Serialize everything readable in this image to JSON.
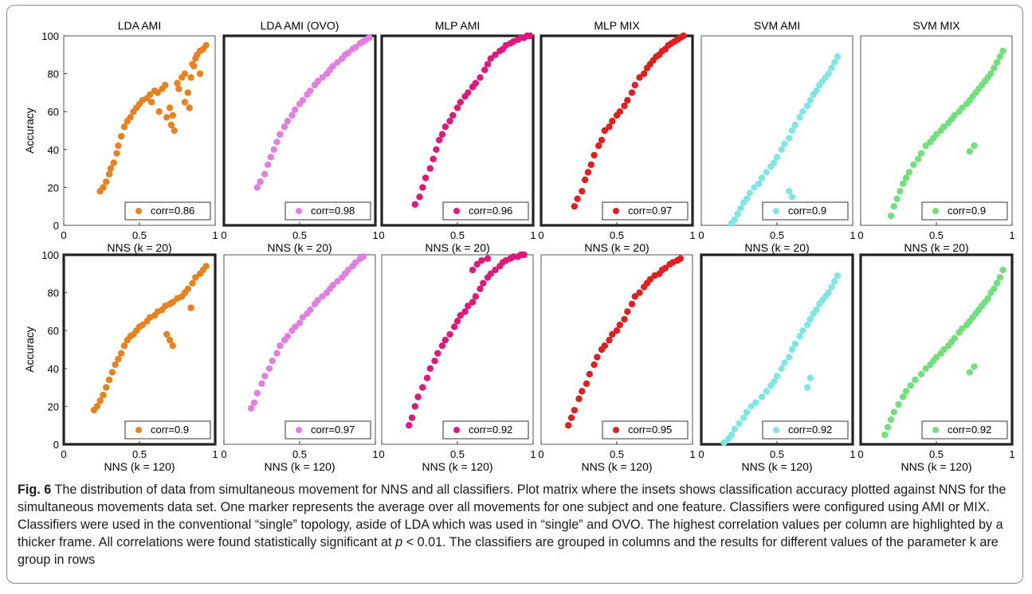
{
  "figure": {
    "ylabel": "Accuracy",
    "xticks": [
      "0",
      "0.5",
      "1"
    ],
    "yticks": [
      "0",
      "20",
      "40",
      "60",
      "80",
      "100"
    ],
    "xlim": [
      0,
      1
    ],
    "ylim": [
      0,
      100
    ]
  },
  "chart_data": [
    {
      "type": "scatter",
      "row": 0,
      "col": 0,
      "title": "LDA AMI",
      "xlabel": "NNS (k = 20)",
      "legend": "corr=0.86",
      "highlight": false,
      "color": "#e8821e",
      "x": [
        0.24,
        0.26,
        0.28,
        0.3,
        0.31,
        0.33,
        0.35,
        0.36,
        0.38,
        0.4,
        0.42,
        0.44,
        0.46,
        0.48,
        0.5,
        0.52,
        0.55,
        0.57,
        0.6,
        0.62,
        0.65,
        0.67,
        0.7,
        0.72,
        0.75,
        0.76,
        0.78,
        0.8,
        0.82,
        0.84,
        0.85,
        0.87,
        0.88,
        0.9,
        0.92,
        0.94,
        0.71,
        0.73,
        0.8,
        0.83,
        0.68,
        0.63,
        0.58,
        0.86,
        0.9
      ],
      "y": [
        18,
        20,
        23,
        27,
        30,
        33,
        38,
        42,
        47,
        52,
        55,
        57,
        60,
        62,
        64,
        66,
        67,
        69,
        71,
        70,
        72,
        74,
        62,
        58,
        75,
        72,
        78,
        80,
        70,
        78,
        85,
        88,
        90,
        92,
        93,
        95,
        53,
        50,
        65,
        62,
        57,
        60,
        65,
        84,
        80
      ]
    },
    {
      "type": "scatter",
      "row": 0,
      "col": 1,
      "title": "LDA AMI (OVO)",
      "xlabel": "NNS (k = 20)",
      "legend": "corr=0.98",
      "highlight": true,
      "color": "#e27ee2",
      "x": [
        0.22,
        0.24,
        0.27,
        0.29,
        0.31,
        0.33,
        0.35,
        0.37,
        0.4,
        0.42,
        0.45,
        0.47,
        0.5,
        0.52,
        0.55,
        0.57,
        0.6,
        0.62,
        0.65,
        0.68,
        0.7,
        0.72,
        0.75,
        0.78,
        0.8,
        0.82,
        0.85,
        0.87,
        0.9,
        0.92,
        0.94,
        0.96
      ],
      "y": [
        20,
        23,
        27,
        32,
        36,
        40,
        44,
        48,
        52,
        55,
        58,
        61,
        64,
        66,
        69,
        71,
        74,
        76,
        78,
        80,
        82,
        84,
        86,
        88,
        90,
        91,
        93,
        94,
        96,
        97,
        98,
        99
      ]
    },
    {
      "type": "scatter",
      "row": 0,
      "col": 2,
      "title": "MLP AMI",
      "xlabel": "NNS (k = 20)",
      "legend": "corr=0.96",
      "highlight": true,
      "color": "#e0187c",
      "x": [
        0.22,
        0.25,
        0.27,
        0.29,
        0.32,
        0.34,
        0.36,
        0.38,
        0.4,
        0.42,
        0.45,
        0.47,
        0.5,
        0.52,
        0.55,
        0.57,
        0.6,
        0.62,
        0.65,
        0.68,
        0.7,
        0.72,
        0.75,
        0.78,
        0.8,
        0.82,
        0.85,
        0.87,
        0.9,
        0.92,
        0.94,
        0.96,
        0.98
      ],
      "y": [
        11,
        15,
        20,
        25,
        30,
        35,
        40,
        45,
        48,
        52,
        55,
        58,
        62,
        65,
        68,
        70,
        73,
        75,
        78,
        82,
        85,
        88,
        90,
        92,
        93,
        95,
        96,
        97,
        98,
        99,
        99,
        100,
        100
      ]
    },
    {
      "type": "scatter",
      "row": 0,
      "col": 3,
      "title": "MLP MIX",
      "xlabel": "NNS (k = 20)",
      "legend": "corr=0.97",
      "highlight": true,
      "color": "#e01f1f",
      "x": [
        0.22,
        0.24,
        0.27,
        0.29,
        0.31,
        0.33,
        0.35,
        0.38,
        0.4,
        0.42,
        0.45,
        0.47,
        0.5,
        0.52,
        0.55,
        0.57,
        0.6,
        0.62,
        0.65,
        0.68,
        0.7,
        0.72,
        0.74,
        0.76,
        0.78,
        0.8,
        0.82,
        0.84,
        0.86,
        0.88,
        0.9,
        0.92,
        0.94
      ],
      "y": [
        10,
        14,
        18,
        24,
        28,
        32,
        37,
        42,
        45,
        50,
        52,
        55,
        58,
        60,
        63,
        66,
        70,
        74,
        78,
        80,
        83,
        85,
        87,
        89,
        90,
        92,
        93,
        95,
        96,
        97,
        98,
        99,
        100
      ]
    },
    {
      "type": "scatter",
      "row": 0,
      "col": 4,
      "title": "SVM AMI",
      "xlabel": "NNS (k = 20)",
      "legend": "corr=0.9",
      "highlight": false,
      "color": "#7fe7e3",
      "x": [
        0.2,
        0.22,
        0.24,
        0.26,
        0.28,
        0.3,
        0.32,
        0.35,
        0.38,
        0.4,
        0.43,
        0.46,
        0.48,
        0.5,
        0.53,
        0.55,
        0.58,
        0.6,
        0.62,
        0.65,
        0.67,
        0.7,
        0.72,
        0.74,
        0.76,
        0.78,
        0.8,
        0.82,
        0.84,
        0.86,
        0.88,
        0.9,
        0.58,
        0.6
      ],
      "y": [
        1,
        3,
        6,
        9,
        12,
        14,
        17,
        20,
        22,
        25,
        28,
        31,
        33,
        36,
        40,
        43,
        46,
        50,
        53,
        57,
        60,
        63,
        66,
        69,
        71,
        74,
        76,
        78,
        80,
        83,
        86,
        89,
        18,
        15
      ]
    },
    {
      "type": "scatter",
      "row": 0,
      "col": 5,
      "title": "SVM MIX",
      "xlabel": "NNS (k = 20)",
      "legend": "corr=0.9",
      "highlight": false,
      "color": "#6fe07a",
      "x": [
        0.2,
        0.22,
        0.24,
        0.26,
        0.28,
        0.3,
        0.32,
        0.35,
        0.38,
        0.4,
        0.43,
        0.46,
        0.48,
        0.5,
        0.53,
        0.55,
        0.58,
        0.6,
        0.62,
        0.65,
        0.67,
        0.7,
        0.72,
        0.74,
        0.76,
        0.78,
        0.8,
        0.82,
        0.84,
        0.86,
        0.88,
        0.9,
        0.92,
        0.94,
        0.72,
        0.75
      ],
      "y": [
        5,
        10,
        14,
        18,
        22,
        25,
        28,
        32,
        35,
        38,
        42,
        44,
        46,
        48,
        50,
        52,
        54,
        56,
        58,
        60,
        62,
        64,
        66,
        68,
        70,
        72,
        74,
        76,
        78,
        80,
        83,
        86,
        89,
        92,
        39,
        42
      ]
    },
    {
      "type": "scatter",
      "row": 1,
      "col": 0,
      "title": "",
      "xlabel": "NNS (k = 120)",
      "legend": "corr=0.9",
      "highlight": true,
      "color": "#e8821e",
      "x": [
        0.2,
        0.22,
        0.24,
        0.26,
        0.28,
        0.3,
        0.32,
        0.34,
        0.36,
        0.38,
        0.4,
        0.42,
        0.44,
        0.46,
        0.48,
        0.5,
        0.52,
        0.55,
        0.57,
        0.6,
        0.62,
        0.65,
        0.67,
        0.7,
        0.72,
        0.75,
        0.78,
        0.8,
        0.82,
        0.85,
        0.87,
        0.9,
        0.92,
        0.94,
        0.7,
        0.72,
        0.68,
        0.84
      ],
      "y": [
        18,
        20,
        23,
        26,
        30,
        34,
        38,
        42,
        45,
        48,
        52,
        55,
        57,
        58,
        60,
        62,
        63,
        65,
        67,
        68,
        70,
        71,
        73,
        74,
        75,
        77,
        78,
        80,
        82,
        85,
        88,
        90,
        92,
        94,
        55,
        52,
        58,
        72
      ]
    },
    {
      "type": "scatter",
      "row": 1,
      "col": 1,
      "title": "",
      "xlabel": "NNS (k = 120)",
      "legend": "corr=0.97",
      "highlight": false,
      "color": "#e27ee2",
      "x": [
        0.18,
        0.2,
        0.22,
        0.25,
        0.27,
        0.3,
        0.32,
        0.35,
        0.37,
        0.4,
        0.42,
        0.45,
        0.47,
        0.5,
        0.52,
        0.55,
        0.57,
        0.6,
        0.62,
        0.65,
        0.68,
        0.7,
        0.72,
        0.75,
        0.78,
        0.8,
        0.82,
        0.85,
        0.87,
        0.9,
        0.92
      ],
      "y": [
        19,
        22,
        27,
        32,
        36,
        40,
        44,
        48,
        52,
        55,
        57,
        60,
        62,
        64,
        67,
        69,
        71,
        74,
        76,
        78,
        80,
        82,
        84,
        86,
        88,
        90,
        92,
        94,
        96,
        98,
        99
      ]
    },
    {
      "type": "scatter",
      "row": 1,
      "col": 2,
      "title": "",
      "xlabel": "NNS (k = 120)",
      "legend": "corr=0.92",
      "highlight": false,
      "color": "#e0187c",
      "x": [
        0.18,
        0.2,
        0.22,
        0.24,
        0.27,
        0.3,
        0.32,
        0.35,
        0.37,
        0.4,
        0.42,
        0.45,
        0.48,
        0.5,
        0.52,
        0.55,
        0.57,
        0.6,
        0.62,
        0.65,
        0.67,
        0.7,
        0.72,
        0.75,
        0.78,
        0.8,
        0.82,
        0.85,
        0.87,
        0.9,
        0.92,
        0.94,
        0.6,
        0.63,
        0.66,
        0.7
      ],
      "y": [
        10,
        14,
        20,
        25,
        30,
        35,
        40,
        44,
        48,
        52,
        55,
        58,
        62,
        65,
        68,
        70,
        73,
        75,
        78,
        82,
        85,
        88,
        90,
        92,
        94,
        96,
        97,
        98,
        99,
        99,
        100,
        100,
        92,
        95,
        97,
        98
      ]
    },
    {
      "type": "scatter",
      "row": 1,
      "col": 3,
      "title": "",
      "xlabel": "NNS (k = 120)",
      "legend": "corr=0.95",
      "highlight": false,
      "color": "#e01f1f",
      "x": [
        0.18,
        0.2,
        0.22,
        0.25,
        0.27,
        0.3,
        0.32,
        0.35,
        0.37,
        0.4,
        0.42,
        0.45,
        0.47,
        0.5,
        0.52,
        0.55,
        0.57,
        0.6,
        0.62,
        0.65,
        0.68,
        0.7,
        0.72,
        0.75,
        0.78,
        0.8,
        0.82,
        0.85,
        0.87,
        0.9,
        0.92
      ],
      "y": [
        10,
        14,
        18,
        24,
        28,
        32,
        37,
        42,
        46,
        50,
        52,
        55,
        58,
        60,
        63,
        66,
        70,
        74,
        78,
        80,
        83,
        85,
        87,
        89,
        90,
        92,
        93,
        95,
        96,
        97,
        98
      ]
    },
    {
      "type": "scatter",
      "row": 1,
      "col": 4,
      "title": "",
      "xlabel": "NNS (k = 120)",
      "legend": "corr=0.92",
      "highlight": true,
      "color": "#7fe7e3",
      "x": [
        0.15,
        0.18,
        0.2,
        0.22,
        0.25,
        0.28,
        0.3,
        0.33,
        0.36,
        0.4,
        0.43,
        0.46,
        0.48,
        0.5,
        0.53,
        0.55,
        0.58,
        0.6,
        0.62,
        0.65,
        0.67,
        0.7,
        0.72,
        0.74,
        0.76,
        0.78,
        0.8,
        0.82,
        0.84,
        0.86,
        0.88,
        0.9,
        0.7,
        0.72
      ],
      "y": [
        1,
        3,
        5,
        8,
        11,
        14,
        17,
        20,
        22,
        25,
        28,
        31,
        33,
        36,
        40,
        43,
        46,
        50,
        53,
        57,
        60,
        63,
        66,
        69,
        71,
        74,
        76,
        78,
        80,
        83,
        86,
        89,
        30,
        35
      ]
    },
    {
      "type": "scatter",
      "row": 1,
      "col": 5,
      "title": "",
      "xlabel": "NNS (k = 120)",
      "legend": "corr=0.92",
      "highlight": true,
      "color": "#6fe07a",
      "x": [
        0.16,
        0.18,
        0.2,
        0.22,
        0.25,
        0.28,
        0.3,
        0.33,
        0.36,
        0.4,
        0.43,
        0.46,
        0.48,
        0.5,
        0.53,
        0.55,
        0.58,
        0.6,
        0.62,
        0.65,
        0.67,
        0.7,
        0.72,
        0.74,
        0.76,
        0.78,
        0.8,
        0.82,
        0.84,
        0.86,
        0.88,
        0.9,
        0.92,
        0.94,
        0.72,
        0.75
      ],
      "y": [
        5,
        9,
        13,
        17,
        21,
        25,
        28,
        31,
        34,
        37,
        40,
        42,
        44,
        46,
        48,
        50,
        52,
        54,
        56,
        59,
        61,
        63,
        65,
        67,
        69,
        71,
        73,
        75,
        77,
        80,
        82,
        85,
        88,
        92,
        38,
        41
      ]
    }
  ],
  "caption": {
    "fig_label": "Fig. 6",
    "text_before_p": " The distribution of data from simultaneous movement for NNS and all classifiers. Plot matrix where the insets shows classification accuracy plotted against NNS for the simultaneous movements data set. One marker represents the average over all movements for one subject and one feature. Classifiers were configured using AMI or MIX. Classifiers were used in the conventional “single” topology, aside of LDA which was used in “single” and OVO. The highest correlation values per column are highlighted by a thicker frame. All correlations were found statistically significant at ",
    "p_symbol": "p",
    "text_after_p": " < 0.01. The classifiers are grouped in columns and the results for different values of the parameter k are group in rows"
  }
}
